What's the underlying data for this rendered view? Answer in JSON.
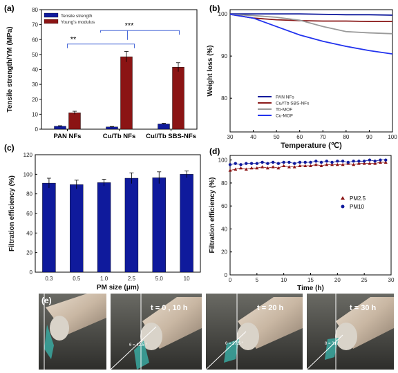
{
  "panel_labels": {
    "a": "(a)",
    "b": "(b)",
    "c": "(c)",
    "d": "(d)",
    "e": "(e)"
  },
  "colors": {
    "blue": "#0f1a9c",
    "red": "#8b1414",
    "gray": "#9a9a9a",
    "bright_blue": "#2233ee",
    "darkred_line": "#8b1a1a"
  },
  "chart_data": [
    {
      "type": "bar",
      "panel": "a",
      "categories": [
        "PAN NFs",
        "Cu/Tb NFs",
        "Cu//Tb SBS-NFs"
      ],
      "series": [
        {
          "name": "Tensile strength",
          "values": [
            2.0,
            1.5,
            3.5
          ],
          "errors": [
            0.3,
            0.3,
            0.4
          ]
        },
        {
          "name": "Young's modulus",
          "values": [
            11,
            48.5,
            41.5
          ],
          "errors": [
            1.0,
            3.5,
            3.0
          ]
        }
      ],
      "ylabel": "Tensile strength/YM (MPa)",
      "ylim": [
        0,
        80
      ],
      "yticks": [
        0,
        10,
        20,
        30,
        40,
        50,
        60,
        70,
        80
      ],
      "annotations": [
        "**",
        "***"
      ],
      "legend": "top-left"
    },
    {
      "type": "line",
      "panel": "b",
      "x": [
        30,
        40,
        50,
        60,
        70,
        80,
        90,
        100
      ],
      "series": [
        {
          "name": "PAN NFs",
          "values": [
            100,
            100,
            100,
            100,
            99.9,
            99.8,
            99.8,
            99.7
          ]
        },
        {
          "name": "Cu//Tb SBS-NFs",
          "values": [
            99.9,
            99.0,
            98.6,
            98.4,
            98.3,
            98.3,
            98.2,
            98.2
          ]
        },
        {
          "name": "Tb-MOF",
          "values": [
            99.9,
            99.6,
            99.2,
            98.5,
            97.0,
            95.8,
            95.5,
            95.3
          ]
        },
        {
          "name": "Cu-MOF",
          "values": [
            99.9,
            99.0,
            97.0,
            95.0,
            93.5,
            92.3,
            91.3,
            90.5
          ]
        }
      ],
      "xlabel": "Temperature (℃)",
      "ylabel": "Weight loss (%)",
      "xlim": [
        30,
        100
      ],
      "ylim": [
        72,
        101
      ],
      "xticks": [
        30,
        40,
        50,
        60,
        70,
        80,
        90,
        100
      ],
      "yticks": [
        80,
        90,
        100
      ],
      "legend": "bottom-left"
    },
    {
      "type": "bar",
      "panel": "c",
      "categories": [
        "0.3",
        "0.5",
        "1.0",
        "2.5",
        "5.0",
        "10"
      ],
      "values": [
        91,
        89.5,
        91.5,
        96,
        96.5,
        100
      ],
      "errors": [
        5,
        4.5,
        3.5,
        5.5,
        6,
        3.5
      ],
      "xlabel": "PM size (μm)",
      "ylabel": "Filtration efficiency (%)",
      "ylim": [
        0,
        120
      ],
      "yticks": [
        0,
        20,
        40,
        60,
        80,
        100,
        120
      ]
    },
    {
      "type": "scatter",
      "panel": "d",
      "x": [
        0,
        1,
        2,
        3,
        4,
        5,
        6,
        7,
        8,
        9,
        10,
        11,
        12,
        13,
        14,
        15,
        16,
        17,
        18,
        19,
        20,
        21,
        22,
        23,
        24,
        25,
        26,
        27,
        28,
        29
      ],
      "series": [
        {
          "name": "PM2.5",
          "values": [
            91,
            92,
            93,
            92,
            93,
            93,
            94,
            93,
            94,
            93,
            95,
            94,
            94,
            95,
            95,
            95,
            96,
            95,
            96,
            96,
            96,
            96,
            97,
            96,
            97,
            97,
            97,
            97,
            98,
            98
          ]
        },
        {
          "name": "PM10",
          "values": [
            96,
            97,
            96,
            97,
            97,
            97,
            98,
            97,
            98,
            97,
            98,
            98,
            97,
            98,
            98,
            98,
            99,
            98,
            99,
            98,
            99,
            99,
            98,
            99,
            99,
            99,
            100,
            99,
            100,
            100
          ]
        }
      ],
      "xlabel": "Time (h)",
      "ylabel": "Filtration efficiency (%)",
      "xlim": [
        0,
        30
      ],
      "ylim": [
        0,
        104
      ],
      "xticks": [
        0,
        5,
        10,
        15,
        20,
        25,
        30
      ],
      "yticks": [
        0,
        20,
        40,
        60,
        80,
        100
      ],
      "legend": "center-right"
    }
  ],
  "photo": {
    "frame_labels": [
      "t = 0 , 10 h",
      "t = 20 h",
      "t = 30 h"
    ],
    "angles": [
      "θ = 42.5 °",
      "θ = 37.5 °",
      "θ = 31 °"
    ]
  }
}
